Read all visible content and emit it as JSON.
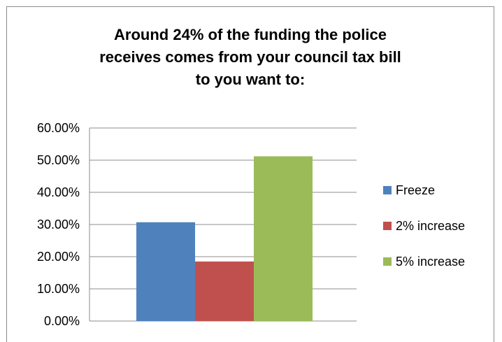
{
  "chart_data": {
    "type": "bar",
    "title_lines": [
      "Around 24% of the funding the police",
      "receives comes from your council tax bill",
      "to you want to:"
    ],
    "categories": [
      ""
    ],
    "series": [
      {
        "name": "Freeze",
        "values": [
          30.7
        ],
        "color": "#4f81bd"
      },
      {
        "name": "2% increase",
        "values": [
          18.5
        ],
        "color": "#c0504d"
      },
      {
        "name": "5% increase",
        "values": [
          51.2
        ],
        "color": "#9bbb59"
      }
    ],
    "ylim": [
      0,
      60
    ],
    "yticks": [
      0,
      10,
      20,
      30,
      40,
      50,
      60
    ],
    "ytick_labels": [
      "0.00%",
      "10.00%",
      "20.00%",
      "30.00%",
      "40.00%",
      "50.00%",
      "60.00%"
    ],
    "xlabel": "",
    "ylabel": "",
    "grid": true,
    "legend_position": "right"
  }
}
